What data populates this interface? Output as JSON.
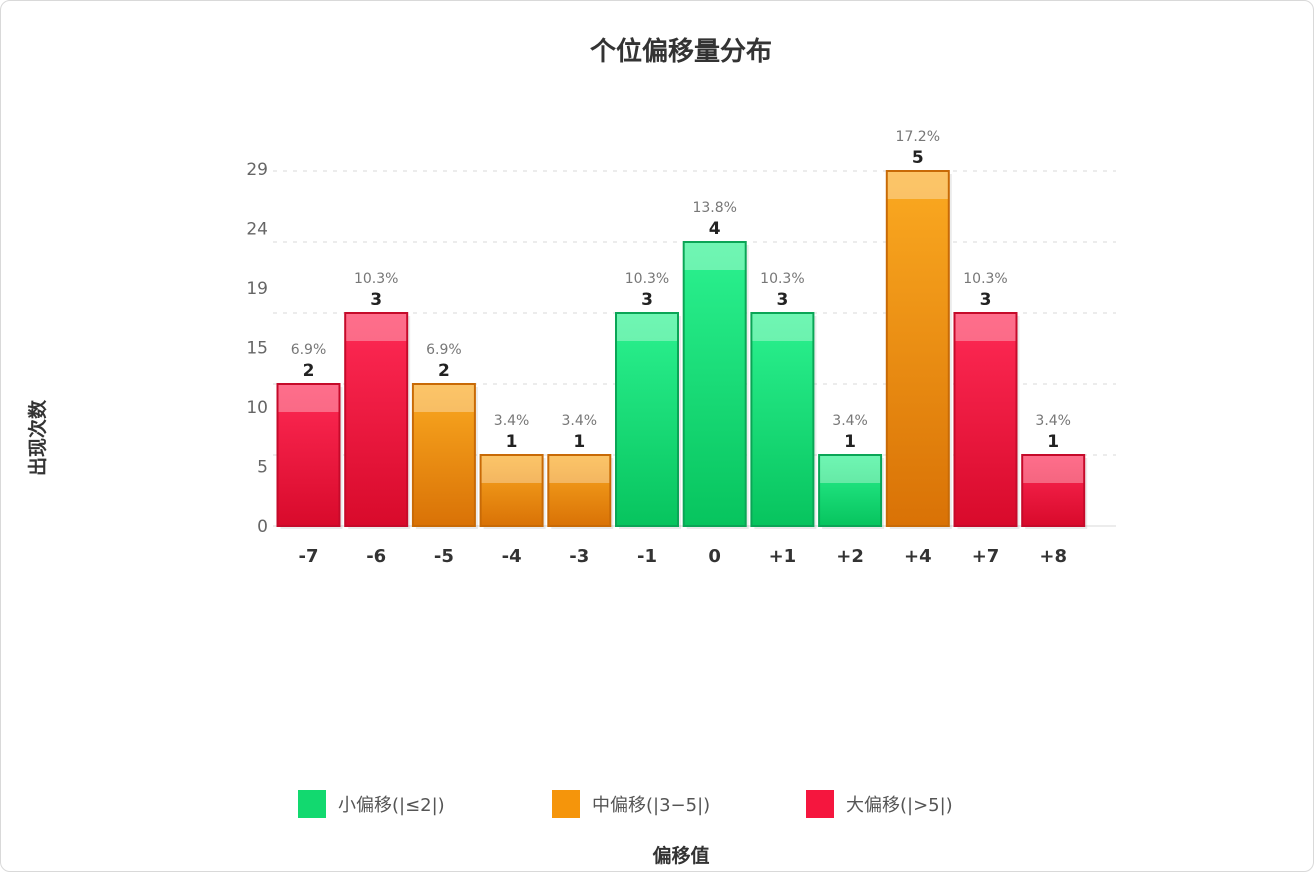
{
  "chart_data": {
    "type": "bar",
    "title": "个位偏移量分布",
    "xlabel": "偏移值",
    "ylabel": "出现次数",
    "categories": [
      "-7",
      "-6",
      "-5",
      "-4",
      "-3",
      "-1",
      "0",
      "+1",
      "+2",
      "+4",
      "+7",
      "+8"
    ],
    "values": [
      2,
      3,
      2,
      1,
      1,
      3,
      4,
      3,
      1,
      5,
      3,
      1
    ],
    "percents": [
      "6.9%",
      "10.3%",
      "6.9%",
      "3.4%",
      "3.4%",
      "10.3%",
      "13.8%",
      "10.3%",
      "3.4%",
      "17.2%",
      "10.3%",
      "3.4%"
    ],
    "groups": [
      "large",
      "large",
      "medium",
      "medium",
      "medium",
      "small",
      "small",
      "small",
      "small",
      "medium",
      "large",
      "large"
    ],
    "y_ticks": [
      "0",
      "5",
      "10",
      "15",
      "19",
      "24",
      "29"
    ],
    "ylim": [
      0,
      5
    ],
    "grid": true,
    "legend": {
      "position": "bottom",
      "items": [
        {
          "key": "small",
          "label": "小偏移(|≤2|)",
          "color": "#12d96f"
        },
        {
          "key": "medium",
          "label": "中偏移(|3−5|)",
          "color": "#f5950b"
        },
        {
          "key": "large",
          "label": "大偏移(|>5|)",
          "color": "#f5163e"
        }
      ]
    }
  }
}
